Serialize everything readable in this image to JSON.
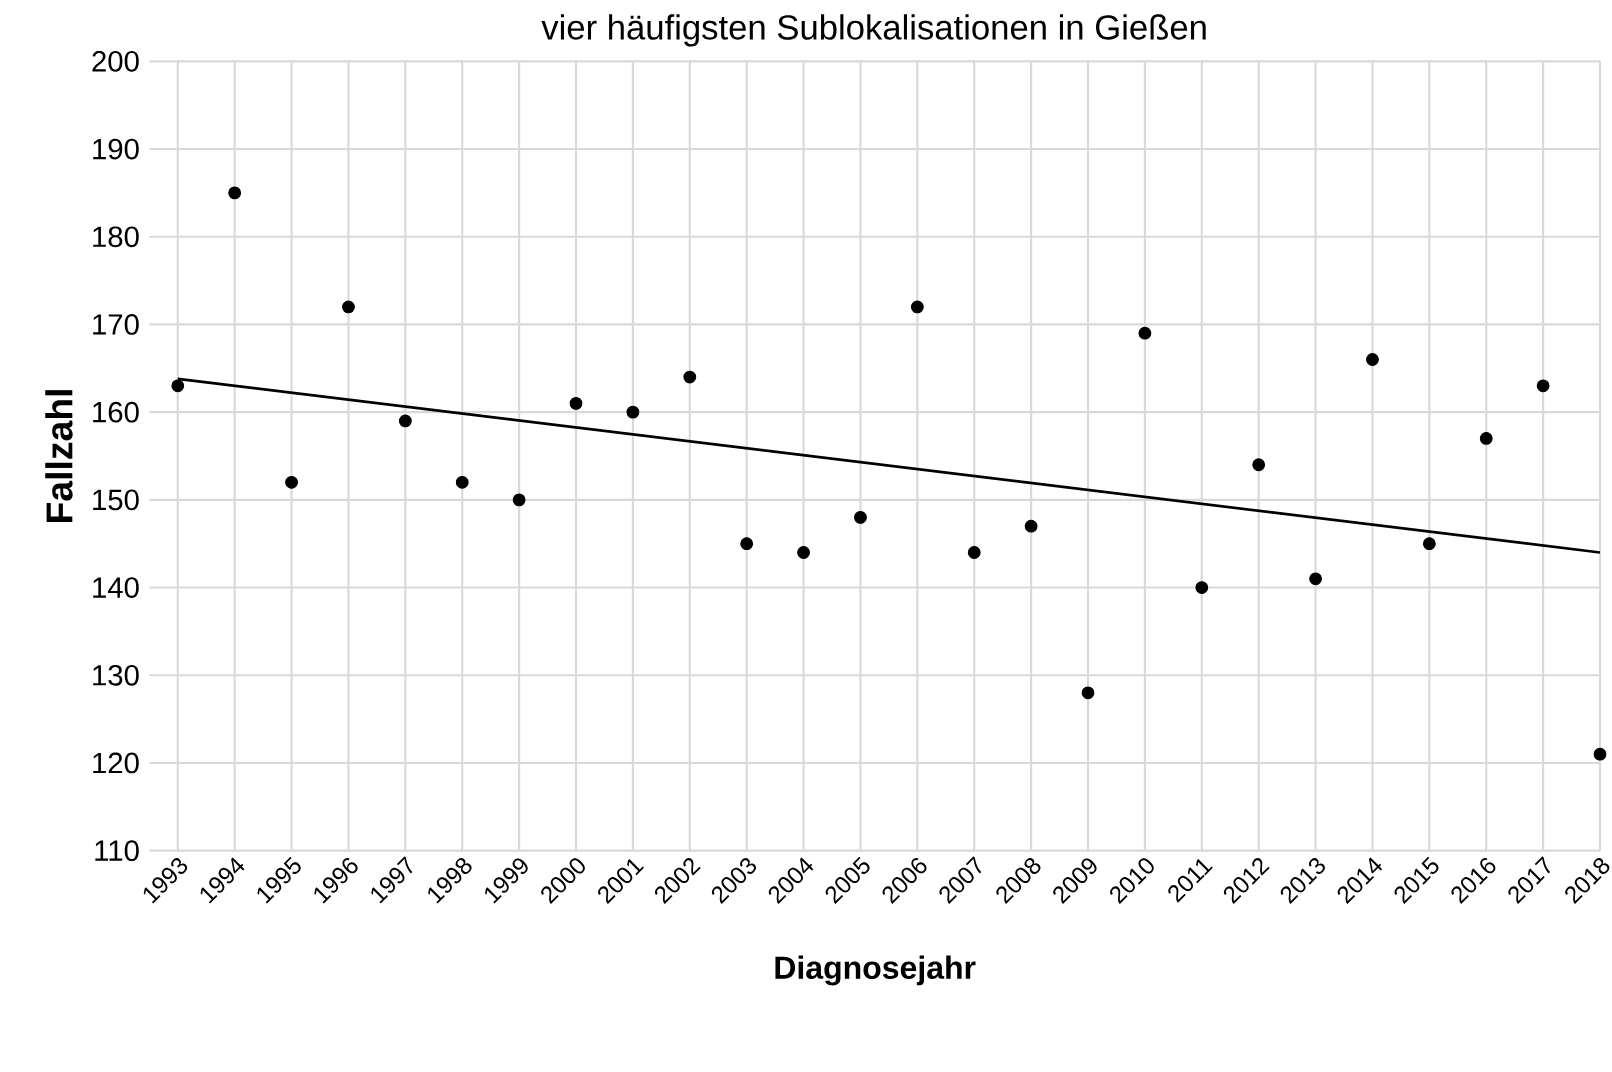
{
  "chart_data": {
    "type": "scatter",
    "title": "vier häufigsten Sublokalisationen in Gießen",
    "xlabel": "Diagnosejahr",
    "ylabel": "Fallzahl",
    "series": [
      {
        "color": "#000000",
        "marker": "circle",
        "x": [
          1993,
          1994,
          1995,
          1996,
          1997,
          1998,
          1999,
          2000,
          2001,
          2002,
          2003,
          2004,
          2005,
          2006,
          2007,
          2008,
          2009,
          2010,
          2011,
          2012,
          2013,
          2014,
          2015,
          2016,
          2017,
          2018
        ],
        "values": [
          163,
          185,
          152,
          172,
          159,
          152,
          150,
          161,
          160,
          164,
          145,
          144,
          148,
          172,
          144,
          147,
          128,
          169,
          140,
          154,
          141,
          166,
          145,
          157,
          163,
          121
        ]
      },
      {
        "type": "line",
        "color": "#000000",
        "marker": "none",
        "line_style": "solid",
        "x": [
          1993,
          2018
        ],
        "values": [
          163.8,
          144
        ]
      }
    ],
    "xlim": [
      1992.5,
      2018
    ],
    "xticks": [
      1993,
      1994,
      1995,
      1996,
      1997,
      1998,
      1999,
      2000,
      2001,
      2002,
      2003,
      2004,
      2005,
      2006,
      2007,
      2008,
      2009,
      2010,
      2011,
      2012,
      2013,
      2014,
      2015,
      2016,
      2017,
      2018
    ],
    "ylim": [
      110,
      200
    ],
    "yticks": [
      110,
      120,
      130,
      140,
      150,
      160,
      170,
      180,
      190,
      200
    ],
    "grid": true
  }
}
